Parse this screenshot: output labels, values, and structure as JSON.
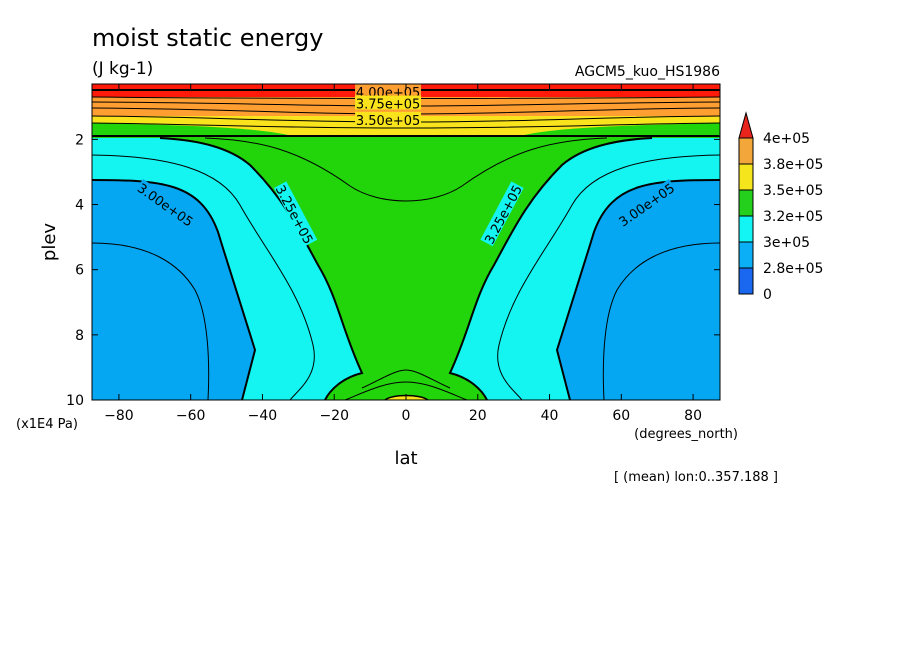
{
  "chart_data": {
    "type": "contour",
    "title": "moist static energy",
    "units": "(J kg-1)",
    "run_label": "AGCM5_kuo_HS1986",
    "xlabel": "lat",
    "xunits": "(degrees_north)",
    "ylabel": "plev",
    "yunits": "(x1E4 Pa)",
    "footnote": "[ (mean) lon:0..357.188 ]",
    "x_ticks": [
      -80,
      -60,
      -40,
      -20,
      0,
      20,
      40,
      60,
      80
    ],
    "x_tick_labels": [
      "−80",
      "−60",
      "−40",
      "−20",
      "0",
      "20",
      "40",
      "60",
      "80"
    ],
    "y_ticks": [
      2,
      4,
      6,
      8,
      10
    ],
    "y_tick_labels": [
      "2",
      "4",
      "6",
      "8",
      "10"
    ],
    "xlim": [
      -87.5,
      87.5
    ],
    "ylim": [
      10,
      0.3
    ],
    "y_reversed": true,
    "contour_labels": [
      {
        "text": "4.00e+05",
        "lat": -5,
        "plev": 0.55
      },
      {
        "text": "3.75e+05",
        "lat": -5,
        "plev": 0.9
      },
      {
        "text": "3.50e+05",
        "lat": -5,
        "plev": 1.4
      },
      {
        "text": "3.00e+05",
        "lat": -67,
        "plev": 4.0
      },
      {
        "text": "3.25e+05",
        "lat": -31,
        "plev": 4.3
      },
      {
        "text": "3.25e+05",
        "lat": 27,
        "plev": 4.3
      },
      {
        "text": "3.00e+05",
        "lat": 67,
        "plev": 4.0
      }
    ],
    "colorbar": {
      "labels": [
        "4e+05",
        "3.8e+05",
        "3.5e+05",
        "3.2e+05",
        "3e+05",
        "2.8e+05",
        "0"
      ],
      "colors": [
        "#e8241c",
        "#f3a73a",
        "#f5e51c",
        "#25d01c",
        "#13f5f5",
        "#0aaff5",
        "#1a68f0"
      ]
    },
    "fill_colors": {
      "top": "#ff1a0a",
      "orange": "#ff9f32",
      "yellow": "#f8e31c",
      "green": "#22d40a",
      "cyan": "#14f4f0",
      "blue": "#05a7f2"
    }
  }
}
